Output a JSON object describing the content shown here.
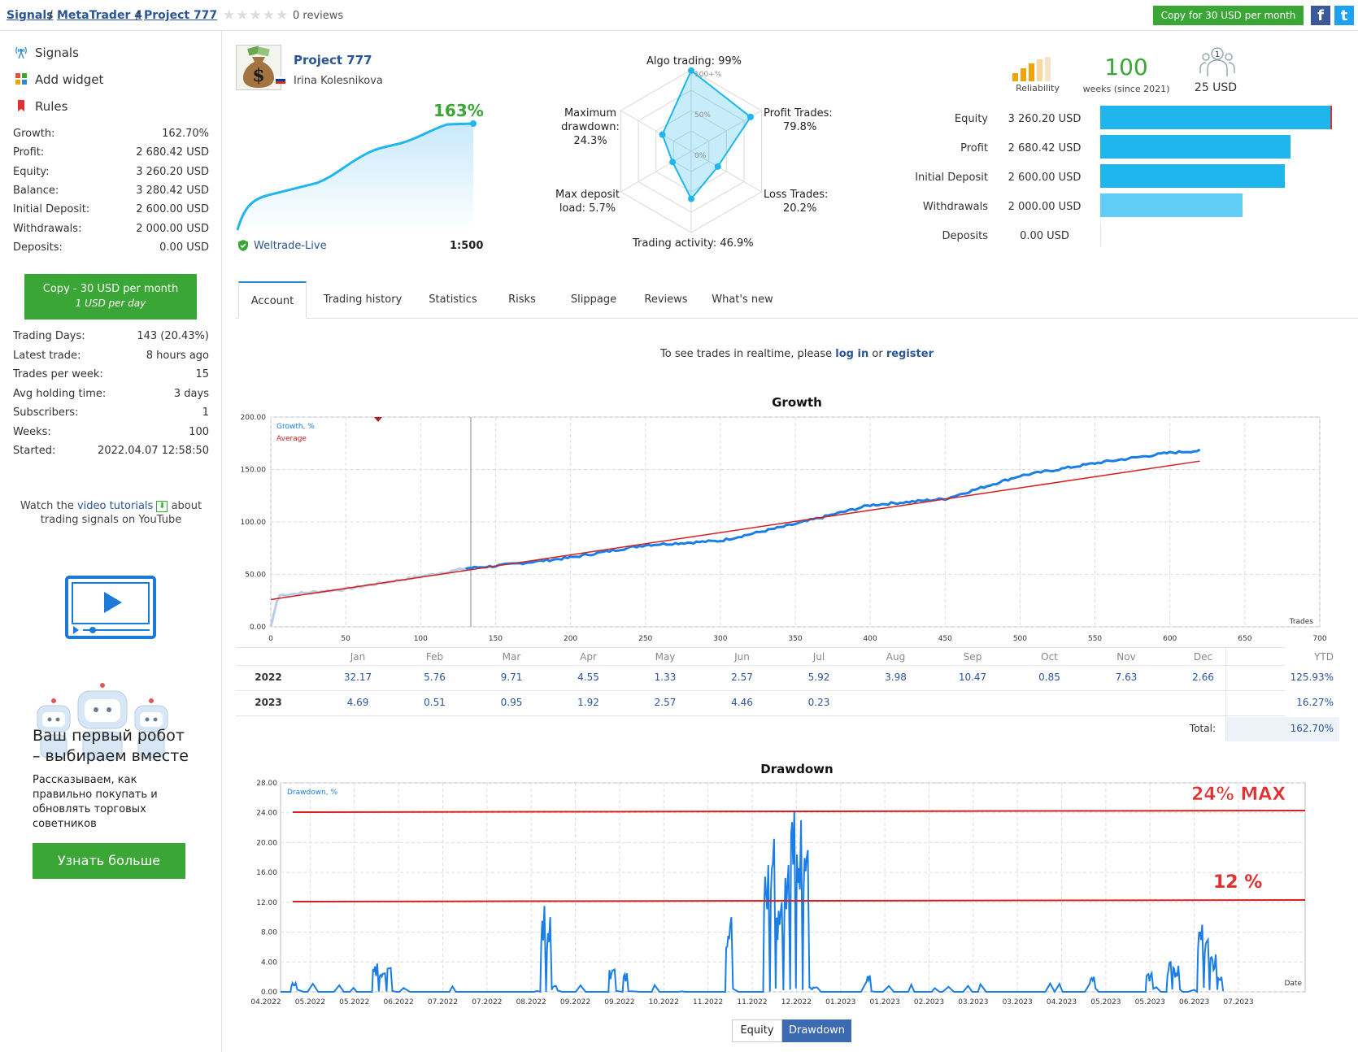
{
  "breadcrumb": {
    "items": [
      "Signals",
      "MetaTrader 4",
      "Project 777"
    ],
    "sep": "/",
    "reviews": "0 reviews"
  },
  "header": {
    "copy_button": "Copy for 30 USD per month",
    "facebook": "f",
    "twitter": "t"
  },
  "sidebar": {
    "nav": [
      "Signals",
      "Add widget",
      "Rules"
    ],
    "stats": [
      {
        "label": "Growth:",
        "value": "162.70%"
      },
      {
        "label": "Profit:",
        "value": "2 680.42 USD"
      },
      {
        "label": "Equity:",
        "value": "3 260.20 USD"
      },
      {
        "label": "Balance:",
        "value": "3 280.42 USD"
      },
      {
        "label": "Initial Deposit:",
        "value": "2 600.00 USD"
      },
      {
        "label": "Withdrawals:",
        "value": "2 000.00 USD"
      },
      {
        "label": "Deposits:",
        "value": "0.00 USD"
      }
    ],
    "copy_line1": "Copy - 30 USD per month",
    "copy_line2": "1 USD per day",
    "stats2": [
      {
        "label": "Trading Days:",
        "value": "143 (20.43%)"
      },
      {
        "label": "Latest trade:",
        "value": "8 hours ago"
      },
      {
        "label": "Trades per week:",
        "value": "15"
      },
      {
        "label": "Avg holding time:",
        "value": "3 days"
      },
      {
        "label": "Subscribers:",
        "value": "1"
      },
      {
        "label": "Weeks:",
        "value": "100"
      },
      {
        "label": "Started:",
        "value": "2022.04.07 12:58:50"
      }
    ],
    "watch_pre": "Watch the",
    "watch_link": "video tutorials",
    "watch_post": "about",
    "watch_line2": "trading signals on YouTube",
    "promo_title1": "Ваш первый робот",
    "promo_title2": "– выбираем вместе",
    "promo_text": [
      "Рассказываем, как",
      "правильно покупать и",
      "обновлять торговых",
      "советников"
    ],
    "promo_button": "Узнать больше"
  },
  "signal": {
    "name": "Project 777",
    "author": "Irina Kolesnikova",
    "growth": "163%",
    "broker": "Weltrade-Live",
    "leverage": "1:500"
  },
  "radar": {
    "algo": "Algo trading: 99%",
    "profit_l1": "Profit Trades:",
    "profit_l2": "79.8%",
    "loss_l1": "Loss Trades:",
    "loss_l2": "20.2%",
    "activity": "Trading activity: 46.9%",
    "load_l1": "Max deposit",
    "load_l2": "load: 5.7%",
    "dd_l1": "Maximum",
    "dd_l2": "drawdown:",
    "dd_l3": "24.3%",
    "r100": "100+%",
    "r50": "50%",
    "r0": "0%",
    "values": [
      99,
      79.8,
      20.2,
      46.9,
      5.7,
      24.3
    ]
  },
  "reliability": {
    "label": "Reliability",
    "weeks_value": "100",
    "weeks_label": "weeks (since 2021)",
    "price": "25 USD",
    "subs": "1"
  },
  "balance_bars": [
    {
      "label": "Equity",
      "value": "3 260.20 USD",
      "amount": 3260.2,
      "color": "#1fb6ee"
    },
    {
      "label": "Profit",
      "value": "2 680.42 USD",
      "amount": 2680.42,
      "color": "#1fb6ee"
    },
    {
      "label": "Initial Deposit",
      "value": "2 600.00 USD",
      "amount": 2600.0,
      "color": "#1fb6ee"
    },
    {
      "label": "Withdrawals",
      "value": "2 000.00 USD",
      "amount": 2000.0,
      "color": "#5fcdf5"
    },
    {
      "label": "Deposits",
      "value": "0.00 USD",
      "amount": 0,
      "color": "#1fb6ee"
    }
  ],
  "tabs": [
    "Account",
    "Trading history",
    "Statistics",
    "Risks",
    "Slippage",
    "Reviews",
    "What's new"
  ],
  "realtime": {
    "pre": "To see trades in realtime, please",
    "login": "log in",
    "or": "or",
    "register": "register"
  },
  "growth_chart": {
    "title": "Growth",
    "legend1": "Growth, %",
    "legend2": "Average",
    "xaxis_label": "Trades",
    "yticks": [
      "0.00",
      "50.00",
      "100.00",
      "150.00",
      "200.00"
    ],
    "xticks": [
      "0",
      "50",
      "100",
      "150",
      "200",
      "250",
      "300",
      "350",
      "400",
      "450",
      "500",
      "550",
      "600",
      "650",
      "700"
    ]
  },
  "monthly": {
    "months": [
      "Jan",
      "Feb",
      "Mar",
      "Apr",
      "May",
      "Jun",
      "Jul",
      "Aug",
      "Sep",
      "Oct",
      "Nov",
      "Dec"
    ],
    "ytd": "YTD",
    "rows": [
      {
        "year": "2022",
        "values": [
          "32.17",
          "5.76",
          "9.71",
          "4.55",
          "1.33",
          "2.57",
          "5.92",
          "3.98",
          "10.47",
          "0.85",
          "7.63",
          "2.66"
        ],
        "ytd": "125.93%"
      },
      {
        "year": "2023",
        "values": [
          "4.69",
          "0.51",
          "0.95",
          "1.92",
          "2.57",
          "4.46",
          "0.23",
          "",
          "",
          "",
          "",
          ""
        ],
        "ytd": "16.27%"
      }
    ],
    "total_label": "Total:",
    "total": "162.70%"
  },
  "drawdown_chart": {
    "title": "Drawdown",
    "legend": "Drawdown, %",
    "xaxis_label": "Date",
    "annot_max": "24% MAX",
    "annot_12": "12 %",
    "yticks": [
      "0.00",
      "4.00",
      "8.00",
      "12.00",
      "16.00",
      "20.00",
      "24.00",
      "28.00"
    ],
    "xticks": [
      "04.2022",
      "05.2022",
      "05.2022",
      "06.2022",
      "07.2022",
      "07.2022",
      "08.2022",
      "09.2022",
      "09.2022",
      "10.2022",
      "11.2022",
      "11.2022",
      "12.2022",
      "01.2023",
      "01.2023",
      "02.2023",
      "03.2023",
      "03.2023",
      "04.2023",
      "05.2023",
      "05.2023",
      "06.2023",
      "07.2023"
    ],
    "toggle": [
      "Equity",
      "Drawdown"
    ]
  },
  "chart_data": [
    {
      "type": "line",
      "title": "Growth",
      "xlabel": "Trades",
      "ylabel": "",
      "xlim": [
        0,
        700
      ],
      "ylim": [
        0,
        200
      ],
      "series": [
        {
          "name": "Growth, %",
          "x": [
            0,
            5,
            50,
            100,
            132,
            150,
            200,
            250,
            300,
            350,
            400,
            450,
            500,
            550,
            600,
            620
          ],
          "y": [
            0,
            30,
            36,
            48,
            56,
            58,
            66,
            78,
            82,
            98,
            116,
            122,
            144,
            156,
            166,
            168
          ]
        },
        {
          "name": "Average",
          "x": [
            0,
            620
          ],
          "y": [
            26,
            158
          ]
        }
      ]
    },
    {
      "type": "line",
      "title": "Drawdown",
      "xlabel": "Date",
      "ylabel": "",
      "ylim": [
        0,
        28
      ],
      "series": [
        {
          "name": "Drawdown, %",
          "x": [
            "04.2022",
            "06.2022",
            "08.2022",
            "09.2022",
            "11.2022",
            "12.2022",
            "12.2022",
            "01.2023",
            "05.2023",
            "06.2023",
            "07.2023"
          ],
          "y": [
            0,
            3.9,
            0.5,
            11.5,
            10,
            20.7,
            24.3,
            0.5,
            2,
            9,
            1
          ]
        }
      ]
    }
  ]
}
